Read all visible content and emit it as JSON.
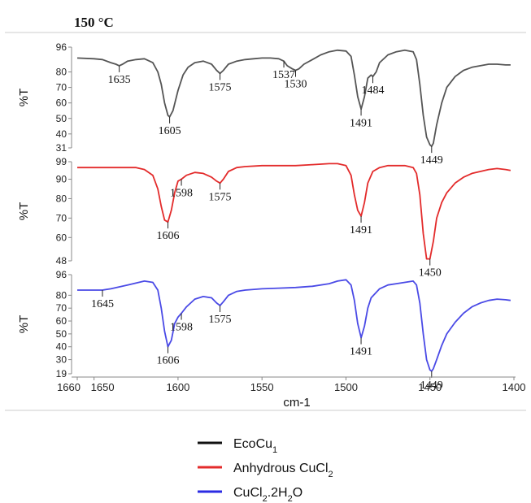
{
  "figure": {
    "title": "150 °C",
    "legend": {
      "placement": "bottom-center",
      "entries": [
        {
          "base": "EcoCu",
          "sub": "1",
          "tail": "",
          "color": "#111111"
        },
        {
          "base": "Anhydrous CuCl",
          "sub": "2",
          "tail": "",
          "color": "#e32b2b"
        },
        {
          "base": "CuCl",
          "sub": "2",
          "tail": ".2H",
          "sub2": "2",
          "tail2": "O",
          "color": "#2b2be3"
        }
      ]
    }
  },
  "chart_data": {
    "type": "line",
    "xlabel": "cm-1",
    "xlim": [
      1660,
      1400
    ],
    "x_reversed": true,
    "x_ticks": [
      "1660",
      "1650",
      "1600",
      "1550",
      "1500",
      "1450",
      "1400"
    ],
    "x_tick_values": [
      1660,
      1650,
      1600,
      1550,
      1500,
      1450,
      1400
    ],
    "grid": false,
    "panels": [
      {
        "series_name": "EcoCu1",
        "color": "#555555",
        "ylabel": "%T",
        "ylim": [
          31,
          96
        ],
        "y_ticks": [
          96,
          80,
          70,
          60,
          50,
          40,
          31
        ],
        "x": [
          1660,
          1650,
          1645,
          1640,
          1637,
          1635,
          1633,
          1630,
          1625,
          1620,
          1615,
          1612,
          1610,
          1608,
          1606,
          1605,
          1603,
          1600,
          1597,
          1594,
          1590,
          1585,
          1580,
          1577,
          1575,
          1573,
          1570,
          1565,
          1560,
          1555,
          1550,
          1545,
          1540,
          1537,
          1535,
          1532,
          1530,
          1528,
          1525,
          1520,
          1515,
          1510,
          1505,
          1500,
          1497,
          1495,
          1493,
          1491,
          1489,
          1487,
          1485,
          1484,
          1482,
          1480,
          1475,
          1470,
          1465,
          1460,
          1458,
          1456,
          1454,
          1452,
          1450,
          1449,
          1448,
          1446,
          1443,
          1440,
          1435,
          1430,
          1425,
          1420,
          1415,
          1410,
          1405,
          1402
        ],
        "y": [
          89,
          88.5,
          88,
          86,
          85,
          84,
          85,
          87,
          88,
          88.5,
          86,
          80,
          72,
          60,
          52,
          51,
          55,
          68,
          78,
          83,
          86,
          87,
          85,
          81,
          79,
          81,
          85,
          87,
          88,
          88.5,
          89,
          89,
          88.5,
          87,
          84,
          82,
          81,
          82,
          85,
          88,
          91,
          93,
          94,
          93.5,
          90,
          78,
          64,
          56,
          64,
          76,
          78,
          77,
          80,
          86,
          91,
          93,
          94,
          93,
          88,
          72,
          52,
          38,
          33,
          32,
          34,
          46,
          60,
          70,
          77,
          81,
          83,
          84,
          85,
          85,
          84.5,
          84.5
        ],
        "annotations": [
          {
            "label": "1635",
            "x": 1635,
            "y": 84
          },
          {
            "label": "1605",
            "x": 1605,
            "y": 51
          },
          {
            "label": "1575",
            "x": 1575,
            "y": 79
          },
          {
            "label": "1537",
            "x": 1537,
            "y": 87
          },
          {
            "label": "1530",
            "x": 1530,
            "y": 81
          },
          {
            "label": "1491",
            "x": 1491,
            "y": 56
          },
          {
            "label": "1484",
            "x": 1484,
            "y": 77
          },
          {
            "label": "1449",
            "x": 1449,
            "y": 32
          }
        ]
      },
      {
        "series_name": "Anhydrous CuCl2",
        "color": "#e32b2b",
        "ylabel": "%T",
        "ylim": [
          48,
          99
        ],
        "y_ticks": [
          99,
          90,
          80,
          70,
          60,
          48
        ],
        "x": [
          1660,
          1640,
          1625,
          1620,
          1615,
          1612,
          1610,
          1608,
          1606,
          1604,
          1602,
          1600,
          1598,
          1595,
          1590,
          1585,
          1580,
          1577,
          1575,
          1573,
          1570,
          1565,
          1560,
          1550,
          1540,
          1530,
          1520,
          1510,
          1505,
          1500,
          1497,
          1495,
          1493,
          1491,
          1489,
          1487,
          1484,
          1480,
          1475,
          1470,
          1465,
          1460,
          1458,
          1456,
          1454,
          1452,
          1450,
          1448,
          1446,
          1443,
          1440,
          1435,
          1430,
          1425,
          1420,
          1415,
          1410,
          1405,
          1402
        ],
        "y": [
          96,
          96,
          96,
          95,
          92,
          85,
          76,
          69,
          68,
          74,
          83,
          89,
          90,
          92,
          93.5,
          93,
          91,
          89,
          88,
          90,
          94,
          96,
          96.5,
          97,
          97,
          97,
          97.5,
          98,
          98,
          97,
          92,
          82,
          74,
          71,
          78,
          88,
          94,
          96,
          97,
          97,
          97,
          96,
          93,
          82,
          62,
          49,
          49,
          58,
          70,
          78,
          83,
          88,
          91,
          93,
          94,
          95,
          95.5,
          95,
          94.5
        ],
        "annotations": [
          {
            "label": "1598",
            "x": 1598,
            "y": 90
          },
          {
            "label": "1575",
            "x": 1575,
            "y": 88
          },
          {
            "label": "1606",
            "x": 1606,
            "y": 68
          },
          {
            "label": "1491",
            "x": 1491,
            "y": 71
          },
          {
            "label": "1450",
            "x": 1450,
            "y": 49
          }
        ]
      },
      {
        "series_name": "CuCl2.2H2O",
        "color": "#4a4ae6",
        "ylabel": "%T",
        "ylim": [
          19,
          96
        ],
        "y_ticks": [
          96,
          80,
          70,
          60,
          50,
          40,
          30,
          19
        ],
        "x": [
          1660,
          1650,
          1645,
          1640,
          1630,
          1620,
          1615,
          1612,
          1610,
          1608,
          1606,
          1604,
          1602,
          1600,
          1598,
          1595,
          1590,
          1585,
          1580,
          1577,
          1575,
          1573,
          1570,
          1565,
          1560,
          1550,
          1540,
          1530,
          1520,
          1510,
          1505,
          1500,
          1497,
          1495,
          1493,
          1491,
          1489,
          1487,
          1485,
          1480,
          1475,
          1470,
          1465,
          1460,
          1458,
          1456,
          1454,
          1452,
          1450,
          1449,
          1448,
          1446,
          1443,
          1440,
          1435,
          1430,
          1425,
          1420,
          1415,
          1410,
          1405,
          1402
        ],
        "y": [
          84,
          84,
          84,
          85,
          88,
          91,
          90,
          84,
          70,
          52,
          40,
          45,
          58,
          63,
          66,
          71,
          77,
          79,
          78,
          74,
          72,
          75,
          80,
          83,
          84,
          85,
          85.5,
          86,
          87,
          89,
          91,
          92,
          88,
          76,
          58,
          47,
          56,
          70,
          78,
          85,
          88,
          89,
          90,
          91,
          88,
          74,
          50,
          30,
          22,
          21,
          23,
          30,
          41,
          50,
          59,
          66,
          71,
          74,
          76,
          77,
          76.5,
          76
        ],
        "annotations": [
          {
            "label": "1645",
            "x": 1645,
            "y": 84
          },
          {
            "label": "1598",
            "x": 1598,
            "y": 66
          },
          {
            "label": "1575",
            "x": 1575,
            "y": 72
          },
          {
            "label": "1606",
            "x": 1606,
            "y": 40
          },
          {
            "label": "1491",
            "x": 1491,
            "y": 47
          },
          {
            "label": "1449",
            "x": 1449,
            "y": 21
          }
        ]
      }
    ]
  }
}
